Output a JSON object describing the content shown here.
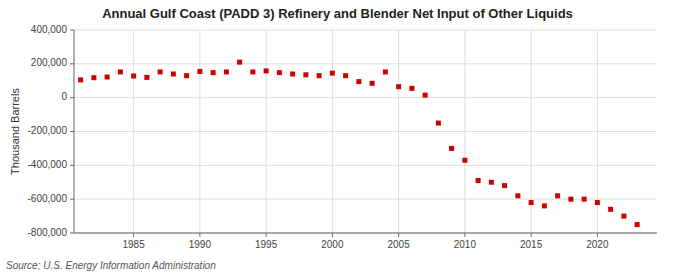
{
  "chart_data": {
    "type": "scatter",
    "title": "Annual Gulf Coast (PADD 3) Refinery and Blender Net Input of Other Liquids",
    "ylabel": "Thousand Barrels",
    "source": "Source: U.S. Energy Information Administration",
    "x": [
      1981,
      1982,
      1983,
      1984,
      1985,
      1986,
      1987,
      1988,
      1989,
      1990,
      1991,
      1992,
      1993,
      1994,
      1995,
      1996,
      1997,
      1998,
      1999,
      2000,
      2001,
      2002,
      2003,
      2004,
      2005,
      2006,
      2007,
      2008,
      2009,
      2010,
      2011,
      2012,
      2013,
      2014,
      2015,
      2016,
      2017,
      2018,
      2019,
      2020,
      2021,
      2022,
      2023
    ],
    "values": [
      105000,
      118000,
      122000,
      152000,
      128000,
      120000,
      152000,
      140000,
      130000,
      155000,
      148000,
      152000,
      210000,
      152000,
      158000,
      148000,
      140000,
      135000,
      130000,
      145000,
      130000,
      95000,
      85000,
      152000,
      65000,
      55000,
      15000,
      -150000,
      -300000,
      -370000,
      -490000,
      -500000,
      -520000,
      -580000,
      -620000,
      -640000,
      -580000,
      -600000,
      -600000,
      -620000,
      -660000,
      -700000,
      -750000
    ],
    "color": "#cc0000",
    "marker": "square",
    "xlim": [
      1980.5,
      2024.5
    ],
    "xticks": [
      1985,
      1990,
      1995,
      2000,
      2005,
      2010,
      2015,
      2020
    ],
    "ylim": [
      -800000,
      400000
    ],
    "yticks": [
      {
        "value": -800000,
        "label": "-800,000"
      },
      {
        "value": -600000,
        "label": "-600,000"
      },
      {
        "value": -400000,
        "label": "-400,000"
      },
      {
        "value": -200000,
        "label": "-200,000"
      },
      0,
      {
        "value": 200000,
        "label": "200,000"
      },
      {
        "value": 400000,
        "label": "400,000"
      }
    ],
    "grid": true
  }
}
